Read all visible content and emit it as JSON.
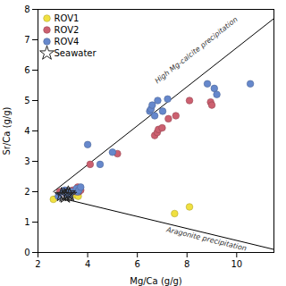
{
  "chart_data": {
    "type": "scatter",
    "xlabel": "Mg/Ca (g/g)",
    "ylabel": "Sr/Ca (g/g)",
    "xlim": [
      2,
      11.5
    ],
    "ylim": [
      0,
      8
    ],
    "xticks": [
      2,
      4,
      6,
      8,
      10
    ],
    "yticks": [
      0,
      1,
      2,
      3,
      4,
      5,
      6,
      7,
      8
    ],
    "legend": "upper left",
    "series": [
      {
        "name": "ROV1",
        "color": "#f0e040",
        "marker": "circle",
        "x": [
          2.62,
          3.55,
          3.62,
          7.5,
          8.1
        ],
        "values": [
          1.75,
          1.88,
          1.85,
          1.28,
          1.5
        ]
      },
      {
        "name": "ROV2",
        "color": "#cc6070",
        "marker": "circle",
        "x": [
          2.88,
          3.1,
          3.4,
          3.55,
          3.6,
          3.65,
          3.72,
          4.1,
          5.2,
          6.7,
          6.8,
          6.85,
          7.0,
          7.25,
          7.55,
          8.1,
          8.95,
          9.0
        ],
        "values": [
          2.0,
          1.95,
          2.05,
          2.0,
          2.15,
          2.0,
          2.05,
          2.9,
          3.25,
          3.85,
          3.95,
          4.05,
          4.1,
          4.4,
          4.5,
          5.0,
          4.95,
          4.85
        ]
      },
      {
        "name": "ROV4",
        "color": "#6688cc",
        "marker": "circle",
        "x": [
          2.82,
          3.02,
          3.08,
          3.12,
          3.18,
          3.22,
          3.28,
          3.33,
          3.55,
          3.6,
          3.65,
          3.72,
          4.0,
          4.5,
          5.0,
          6.5,
          6.55,
          6.6,
          6.7,
          6.82,
          7.02,
          7.22,
          8.82,
          9.1,
          9.2,
          10.55
        ],
        "values": [
          1.85,
          2.0,
          2.05,
          1.95,
          2.0,
          1.9,
          2.0,
          2.0,
          2.1,
          2.0,
          2.05,
          2.15,
          3.55,
          2.9,
          3.3,
          4.65,
          4.72,
          4.85,
          4.5,
          5.0,
          4.65,
          5.05,
          5.55,
          5.4,
          5.2,
          5.55
        ]
      },
      {
        "name": "Seawater",
        "color": "#222222",
        "marker": "star",
        "x": [
          2.95,
          3.05,
          3.1,
          3.18,
          3.22,
          3.27
        ],
        "values": [
          1.9,
          1.88,
          1.85,
          1.9,
          1.95,
          1.9
        ]
      }
    ],
    "lines": [
      {
        "color": "#000000",
        "x": [
          2.62,
          11.5
        ],
        "values": [
          2.0,
          7.7
        ],
        "annotation": {
          "text": "High Mg-calcite precipitation",
          "x": 6.8,
          "y": 5.55
        }
      },
      {
        "color": "#000000",
        "x": [
          2.62,
          11.5
        ],
        "values": [
          1.85,
          0.1
        ],
        "annotation": {
          "text": "Aragonite precipitation",
          "x": 7.2,
          "y": 0.85
        }
      }
    ]
  }
}
